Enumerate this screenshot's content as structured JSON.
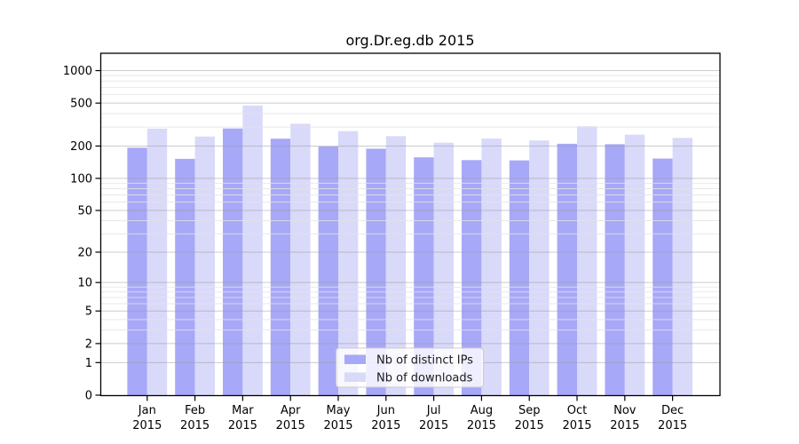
{
  "figure": {
    "title": "org.Dr.eg.db 2015",
    "background": "#ffffff"
  },
  "chart_data": {
    "type": "bar",
    "title": "org.Dr.eg.db 2015",
    "categories": [
      "Jan",
      "Feb",
      "Mar",
      "Apr",
      "May",
      "Jun",
      "Jul",
      "Aug",
      "Sep",
      "Oct",
      "Nov",
      "Dec"
    ],
    "x_year_line": "2015",
    "series": [
      {
        "name": "Nb of distinct IPs",
        "color": "#a8a8f8",
        "values": [
          193,
          152,
          291,
          234,
          198,
          189,
          157,
          148,
          147,
          210,
          208,
          153
        ]
      },
      {
        "name": "Nb of downloads",
        "color": "#d9d9fa",
        "values": [
          290,
          245,
          475,
          322,
          275,
          247,
          215,
          235,
          225,
          305,
          255,
          238
        ]
      }
    ],
    "xlabel": "",
    "ylabel": "",
    "y_scale": "log1p",
    "y_ticks": [
      0,
      1,
      2,
      5,
      10,
      20,
      50,
      100,
      200,
      500,
      1000
    ],
    "y_minor_gridlines": [
      3,
      4,
      6,
      7,
      8,
      9,
      30,
      40,
      60,
      70,
      80,
      90,
      300,
      400,
      600,
      700,
      800,
      900
    ],
    "ylim": [
      0,
      1480
    ],
    "grid": true,
    "legend": {
      "position": "inside-bottom-center",
      "labels": [
        "Nb of distinct IPs",
        "Nb of downloads"
      ]
    },
    "colors": {
      "major_grid": "#c9c9c9",
      "minor_grid": "#e8e8e8",
      "spine": "#000000"
    }
  }
}
